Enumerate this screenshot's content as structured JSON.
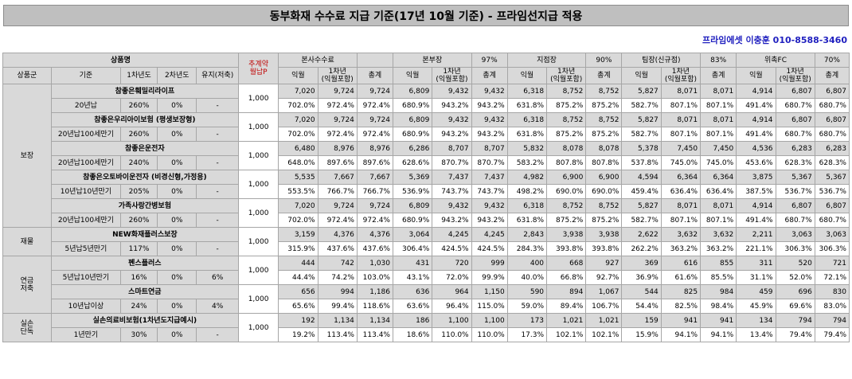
{
  "title": "동부화재 수수료 지급 기준(17년 10월 기준) - 프라임선지급 적용",
  "contact": "프라임에셋 이충훈 010-8588-3460",
  "header1": {
    "product": "상품명",
    "base_label": "추계약\n월납P",
    "groups": [
      {
        "name": "본사수수료",
        "pct": ""
      },
      {
        "name": "본부장",
        "pct": "97%"
      },
      {
        "name": "지점장",
        "pct": "90%"
      },
      {
        "name": "팀장(신규점)",
        "pct": "83%"
      },
      {
        "name": "위촉FC",
        "pct": "70%"
      }
    ]
  },
  "header2": {
    "cat": "상품군",
    "basis": "기준",
    "y1": "1차년도",
    "y2": "2차년도",
    "maint": "유지(저축)",
    "c1": "익월",
    "c2": "1차년\n(익월포함)",
    "c3": "총계"
  },
  "rows": [
    {
      "product": "참좋은훼밀리라이프",
      "basis": "20년납",
      "y1": "260%",
      "y2": "0%",
      "maint": "-",
      "base": "1,000",
      "vals": [
        "7,020",
        "9,724",
        "9,724",
        "6,809",
        "9,432",
        "9,432",
        "6,318",
        "8,752",
        "8,752",
        "5,827",
        "8,071",
        "8,071",
        "4,914",
        "6,807",
        "6,807"
      ],
      "pcts": [
        "702.0%",
        "972.4%",
        "972.4%",
        "680.9%",
        "943.2%",
        "943.2%",
        "631.8%",
        "875.2%",
        "875.2%",
        "582.7%",
        "807.1%",
        "807.1%",
        "491.4%",
        "680.7%",
        "680.7%"
      ]
    },
    {
      "product": "참좋은우리아이보험 (평생보장형)",
      "basis": "20년납100세만기",
      "y1": "260%",
      "y2": "0%",
      "maint": "-",
      "base": "1,000",
      "vals": [
        "7,020",
        "9,724",
        "9,724",
        "6,809",
        "9,432",
        "9,432",
        "6,318",
        "8,752",
        "8,752",
        "5,827",
        "8,071",
        "8,071",
        "4,914",
        "6,807",
        "6,807"
      ],
      "pcts": [
        "702.0%",
        "972.4%",
        "972.4%",
        "680.9%",
        "943.2%",
        "943.2%",
        "631.8%",
        "875.2%",
        "875.2%",
        "582.7%",
        "807.1%",
        "807.1%",
        "491.4%",
        "680.7%",
        "680.7%"
      ]
    },
    {
      "product": "참좋은운전자",
      "basis": "20년납100세만기",
      "y1": "240%",
      "y2": "0%",
      "maint": "-",
      "base": "1,000",
      "vals": [
        "6,480",
        "8,976",
        "8,976",
        "6,286",
        "8,707",
        "8,707",
        "5,832",
        "8,078",
        "8,078",
        "5,378",
        "7,450",
        "7,450",
        "4,536",
        "6,283",
        "6,283"
      ],
      "pcts": [
        "648.0%",
        "897.6%",
        "897.6%",
        "628.6%",
        "870.7%",
        "870.7%",
        "583.2%",
        "807.8%",
        "807.8%",
        "537.8%",
        "745.0%",
        "745.0%",
        "453.6%",
        "628.3%",
        "628.3%"
      ]
    },
    {
      "product": "참좋은오토바이운전자 (비경신형,가정용)",
      "basis": "10년납10년만기",
      "y1": "205%",
      "y2": "0%",
      "maint": "-",
      "base": "1,000",
      "vals": [
        "5,535",
        "7,667",
        "7,667",
        "5,369",
        "7,437",
        "7,437",
        "4,982",
        "6,900",
        "6,900",
        "4,594",
        "6,364",
        "6,364",
        "3,875",
        "5,367",
        "5,367"
      ],
      "pcts": [
        "553.5%",
        "766.7%",
        "766.7%",
        "536.9%",
        "743.7%",
        "743.7%",
        "498.2%",
        "690.0%",
        "690.0%",
        "459.4%",
        "636.4%",
        "636.4%",
        "387.5%",
        "536.7%",
        "536.7%"
      ]
    },
    {
      "product": "가족사랑간병보험",
      "basis": "20년납100세만기",
      "y1": "260%",
      "y2": "0%",
      "maint": "-",
      "base": "1,000",
      "vals": [
        "7,020",
        "9,724",
        "9,724",
        "6,809",
        "9,432",
        "9,432",
        "6,318",
        "8,752",
        "8,752",
        "5,827",
        "8,071",
        "8,071",
        "4,914",
        "6,807",
        "6,807"
      ],
      "pcts": [
        "702.0%",
        "972.4%",
        "972.4%",
        "680.9%",
        "943.2%",
        "943.2%",
        "631.8%",
        "875.2%",
        "875.2%",
        "582.7%",
        "807.1%",
        "807.1%",
        "491.4%",
        "680.7%",
        "680.7%"
      ]
    },
    {
      "product": "NEW화재플러스보장",
      "basis": "5년납5년만기",
      "y1": "117%",
      "y2": "0%",
      "maint": "-",
      "base": "1,000",
      "vals": [
        "3,159",
        "4,376",
        "4,376",
        "3,064",
        "4,245",
        "4,245",
        "2,843",
        "3,938",
        "3,938",
        "2,622",
        "3,632",
        "3,632",
        "2,211",
        "3,063",
        "3,063"
      ],
      "pcts": [
        "315.9%",
        "437.6%",
        "437.6%",
        "306.4%",
        "424.5%",
        "424.5%",
        "284.3%",
        "393.8%",
        "393.8%",
        "262.2%",
        "363.2%",
        "363.2%",
        "221.1%",
        "306.3%",
        "306.3%"
      ]
    },
    {
      "product": "펜스플러스",
      "basis": "5년납10년만기",
      "y1": "16%",
      "y2": "0%",
      "maint": "6%",
      "base": "1,000",
      "vals": [
        "444",
        "742",
        "1,030",
        "431",
        "720",
        "999",
        "400",
        "668",
        "927",
        "369",
        "616",
        "855",
        "311",
        "520",
        "721"
      ],
      "pcts": [
        "44.4%",
        "74.2%",
        "103.0%",
        "43.1%",
        "72.0%",
        "99.9%",
        "40.0%",
        "66.8%",
        "92.7%",
        "36.9%",
        "61.6%",
        "85.5%",
        "31.1%",
        "52.0%",
        "72.1%"
      ]
    },
    {
      "product": "스마트연금",
      "basis": "10년납이상",
      "y1": "24%",
      "y2": "0%",
      "maint": "4%",
      "base": "1,000",
      "vals": [
        "656",
        "994",
        "1,186",
        "636",
        "964",
        "1,150",
        "590",
        "894",
        "1,067",
        "544",
        "825",
        "984",
        "459",
        "696",
        "830"
      ],
      "pcts": [
        "65.6%",
        "99.4%",
        "118.6%",
        "63.6%",
        "96.4%",
        "115.0%",
        "59.0%",
        "89.4%",
        "106.7%",
        "54.4%",
        "82.5%",
        "98.4%",
        "45.9%",
        "69.6%",
        "83.0%"
      ]
    },
    {
      "product": "실손의료비보험(1차년도지급예시)",
      "basis": "1년만기",
      "y1": "30%",
      "y2": "0%",
      "maint": "-",
      "base": "1,000",
      "vals": [
        "192",
        "1,134",
        "1,134",
        "186",
        "1,100",
        "1,100",
        "173",
        "1,021",
        "1,021",
        "159",
        "941",
        "941",
        "134",
        "794",
        "794"
      ],
      "pcts": [
        "19.2%",
        "113.4%",
        "113.4%",
        "18.6%",
        "110.0%",
        "110.0%",
        "17.3%",
        "102.1%",
        "102.1%",
        "15.9%",
        "94.1%",
        "94.1%",
        "13.4%",
        "79.4%",
        "79.4%"
      ]
    }
  ],
  "categories": [
    {
      "name": "보장",
      "start": 0,
      "span": 5
    },
    {
      "name": "재물",
      "start": 5,
      "span": 1
    },
    {
      "name": "연금\n저축",
      "start": 6,
      "span": 2
    },
    {
      "name": "실손\n단독",
      "start": 8,
      "span": 1
    }
  ]
}
